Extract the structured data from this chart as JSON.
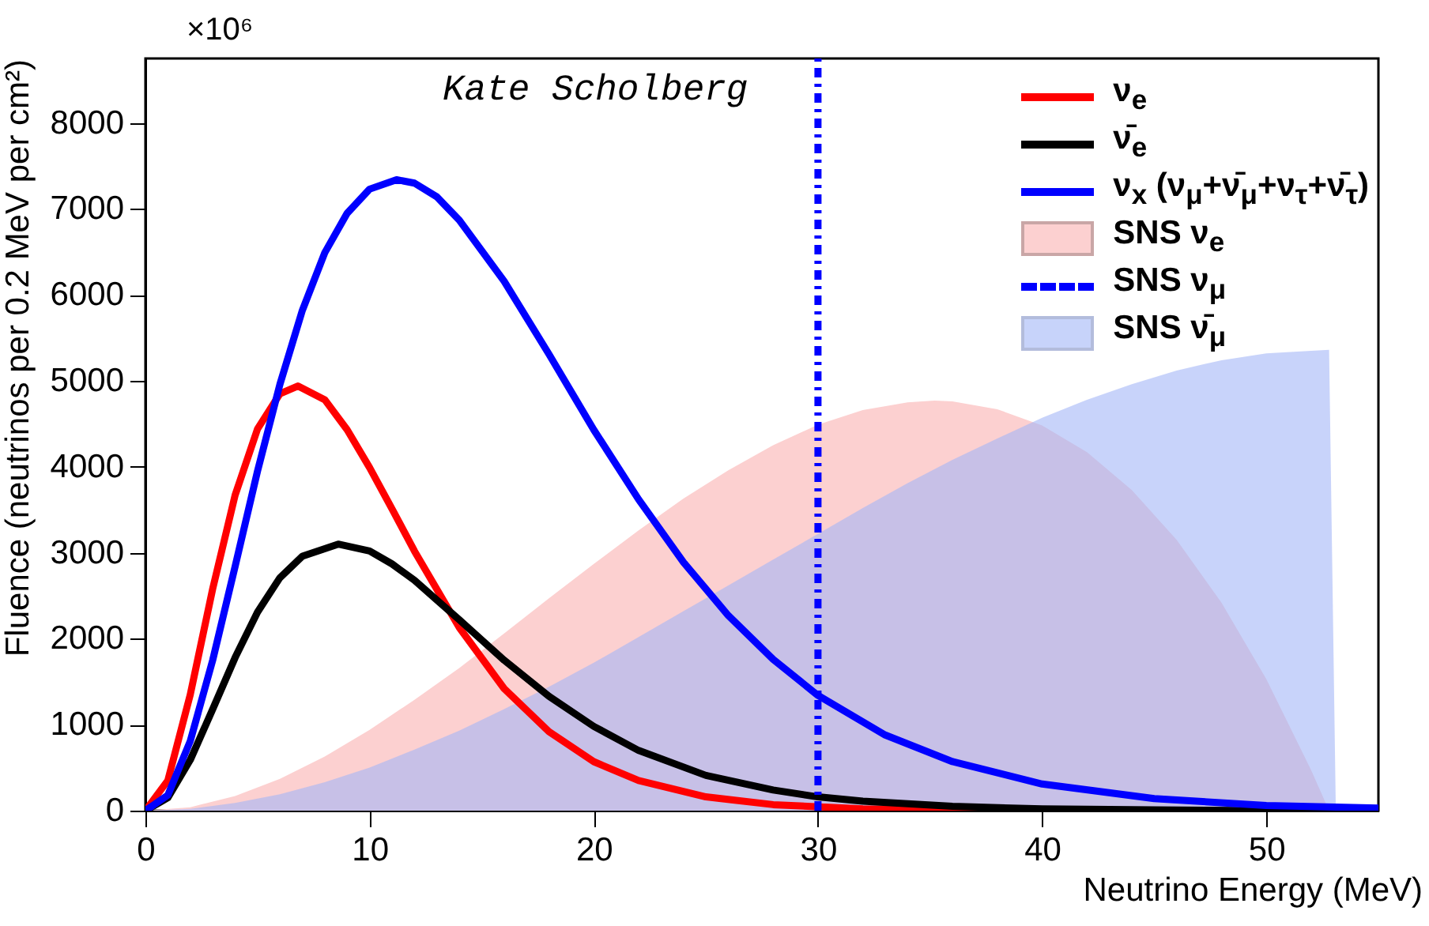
{
  "chart_data": {
    "type": "line",
    "xlabel": "Neutrino Energy (MeV)",
    "ylabel": "Fluence (neutrinos per 0.2 MeV per cm²)",
    "annotations": [
      "×10⁶",
      "Kate Scholberg"
    ],
    "xlim": [
      0,
      55
    ],
    "ylim": [
      0,
      8750
    ],
    "xticks": [
      0,
      10,
      20,
      30,
      40,
      50
    ],
    "yticks": [
      0,
      1000,
      2000,
      3000,
      4000,
      5000,
      6000,
      7000,
      8000
    ],
    "grid": false,
    "legend": "top right",
    "marker": "none",
    "series": [
      {
        "name": "ν$_{e}$",
        "color": "#ff0000",
        "x": [
          0,
          1,
          2,
          3,
          4,
          5,
          6,
          6.8,
          8,
          9,
          10,
          11,
          12,
          14,
          16,
          18,
          20,
          22,
          25,
          28,
          32,
          36,
          40
        ],
        "values": [
          0,
          350,
          1350,
          2580,
          3670,
          4440,
          4850,
          4940,
          4780,
          4430,
          3990,
          3510,
          3020,
          2130,
          1420,
          920,
          570,
          350,
          160,
          70,
          20,
          10,
          0
        ]
      },
      {
        "name": "ν̄$_{e}$",
        "color": "#000000",
        "x": [
          0,
          1,
          2,
          3,
          4,
          5,
          6,
          7,
          8.6,
          10,
          11,
          12,
          14,
          16,
          18,
          20,
          22,
          25,
          28,
          30,
          32,
          36,
          40,
          45,
          50,
          55
        ],
        "values": [
          0,
          150,
          590,
          1180,
          1780,
          2310,
          2710,
          2960,
          3100,
          3020,
          2870,
          2680,
          2220,
          1750,
          1330,
          980,
          700,
          410,
          240,
          160,
          110,
          50,
          20,
          10,
          0,
          0
        ]
      },
      {
        "name": "ν$_{x}$ (ν$_{μ}$+ν̄$_{μ}$+ν$_{τ}$+ν̄$_{τ}$)",
        "color": "#0000ff",
        "x": [
          0,
          1,
          2,
          3,
          4,
          5,
          6,
          7,
          8,
          9,
          10,
          11.2,
          12,
          13,
          14,
          16,
          18,
          20,
          22,
          24,
          26,
          28,
          30,
          33,
          36,
          40,
          45,
          50,
          55
        ],
        "values": [
          0,
          180,
          810,
          1750,
          2840,
          3950,
          4960,
          5820,
          6490,
          6950,
          7230,
          7340,
          7300,
          7140,
          6870,
          6160,
          5310,
          4430,
          3620,
          2890,
          2270,
          1760,
          1340,
          880,
          570,
          310,
          140,
          60,
          30
        ]
      },
      {
        "name": "SNS ν$_{e}$",
        "color": "#fcd0d0",
        "type": "area",
        "x": [
          0,
          2,
          4,
          6,
          8,
          10,
          12,
          14,
          16,
          18,
          20,
          22,
          24,
          26,
          28,
          30,
          32,
          34,
          35.2,
          36,
          38,
          40,
          42,
          44,
          46,
          48,
          50,
          52,
          52.8
        ],
        "values": [
          0,
          40,
          170,
          370,
          630,
          940,
          1290,
          1660,
          2060,
          2470,
          2870,
          3260,
          3630,
          3960,
          4250,
          4490,
          4660,
          4750,
          4770,
          4760,
          4670,
          4480,
          4170,
          3730,
          3150,
          2420,
          1530,
          470,
          0
        ]
      },
      {
        "name": "SNS ν$_{μ}$",
        "color": "#0000ff",
        "line_style": "dashed",
        "x": [
          30,
          30
        ],
        "values": [
          0,
          8750
        ]
      },
      {
        "name": "SNS ν̄$_{μ}$",
        "color": "#a3b6f7",
        "type": "area",
        "x": [
          0,
          2,
          4,
          6,
          8,
          10,
          12,
          14,
          16,
          18,
          20,
          22,
          24,
          26,
          28,
          30,
          32,
          34,
          36,
          38,
          40,
          42,
          44,
          46,
          48,
          50,
          52,
          52.8,
          53.1
        ],
        "values": [
          0,
          20,
          90,
          190,
          330,
          500,
          710,
          930,
          1180,
          1440,
          1720,
          2020,
          2320,
          2620,
          2920,
          3220,
          3520,
          3810,
          4080,
          4330,
          4570,
          4780,
          4960,
          5120,
          5240,
          5320,
          5350,
          5360,
          0
        ]
      }
    ]
  }
}
